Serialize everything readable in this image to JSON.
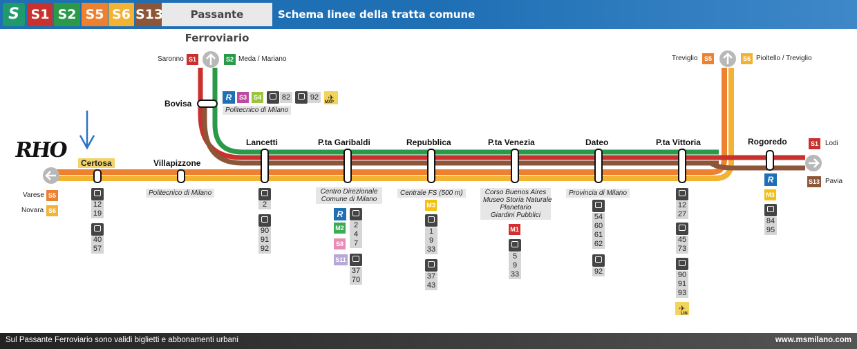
{
  "header": {
    "logo_letter": "S",
    "lines": [
      {
        "label": "S1",
        "color": "#c8312d"
      },
      {
        "label": "S2",
        "color": "#2a9a4a"
      },
      {
        "label": "S5",
        "color": "#ee8130"
      },
      {
        "label": "S6",
        "color": "#f2b234"
      },
      {
        "label": "S13",
        "color": "#8d5638"
      }
    ],
    "network": "Passante Ferroviario",
    "title": "Schema linee della tratta comune"
  },
  "annotation": {
    "handwritten": "RHO",
    "arrow": "blue-down-arrow"
  },
  "branches": {
    "north": {
      "left": "Saronno",
      "left_line": "S1",
      "right": "Meda / Mariano",
      "right_line": "S2"
    },
    "northeast": {
      "left": "Treviglio",
      "left_line": "S5",
      "right": "Pioltello / Treviglio",
      "right_line": "S6"
    },
    "west": [
      {
        "name": "Varese",
        "line": "S5"
      },
      {
        "name": "Novara",
        "line": "S6"
      }
    ],
    "east": [
      {
        "name": "Lodi",
        "line": "S1"
      },
      {
        "name": "Pavia",
        "line": "S13"
      }
    ]
  },
  "stations": {
    "bovisa": {
      "name": "Bovisa",
      "lines": [
        "S3",
        "S4"
      ],
      "bus": [
        "82",
        "92"
      ],
      "airport": "MXP",
      "label": "Politecnico di Milano"
    },
    "certosa": {
      "name": "Certosa",
      "tram": [
        "12",
        "19"
      ],
      "bus": [
        "40",
        "57"
      ]
    },
    "villapizzone": {
      "name": "Villapizzone",
      "label": "Politecnico di Milano"
    },
    "lancetti": {
      "name": "Lancetti",
      "tram": [
        "2"
      ],
      "bus": [
        "90",
        "91",
        "92"
      ]
    },
    "garibaldi": {
      "name": "P.ta Garibaldi",
      "label_1": "Centro Direzionale",
      "label_2": "Comune di Milano",
      "metro": "M2",
      "lines": [
        "S8",
        "S11"
      ],
      "tram": [
        "2",
        "4",
        "7"
      ],
      "bus": [
        "37",
        "70"
      ]
    },
    "repubblica": {
      "name": "Repubblica",
      "label": "Centrale FS (500 m)",
      "metro": "M3",
      "tram": [
        "1",
        "9",
        "33"
      ],
      "bus": [
        "37",
        "43"
      ]
    },
    "venezia": {
      "name": "P.ta Venezia",
      "labels": [
        "Corso Buenos Aires",
        "Museo Storia Naturale",
        "Planetario",
        "Giardini Pubblici"
      ],
      "metro": "M1",
      "tram": [
        "5",
        "9",
        "33"
      ]
    },
    "dateo": {
      "name": "Dateo",
      "label": "Provincia di Milano",
      "bus_1": [
        "54",
        "60",
        "61",
        "62"
      ],
      "bus_2": [
        "92"
      ]
    },
    "vittoria": {
      "name": "P.ta Vittoria",
      "tram": [
        "12",
        "27"
      ],
      "bus_1": [
        "45",
        "73"
      ],
      "bus_2": [
        "90",
        "91",
        "93"
      ],
      "airport": "LIN"
    },
    "rogoredo": {
      "name": "Rogoredo",
      "metro": "M3",
      "bus": [
        "84",
        "95"
      ]
    }
  },
  "footer": {
    "note": "Sul Passante Ferroviario sono validi biglietti e abbonamenti urbani",
    "url": "www.msmilano.com"
  }
}
